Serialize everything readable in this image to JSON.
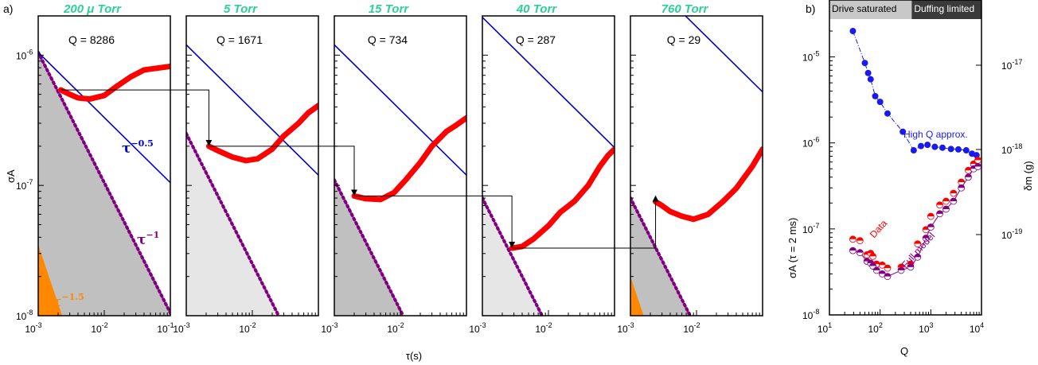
{
  "chart_data": [
    {
      "type": "line",
      "panel_label": "a)",
      "xlabel": "τ(s)",
      "ylabel": "σA",
      "xscale": "log",
      "yscale": "log",
      "xlim": [
        0.001,
        0.1
      ],
      "ylim": [
        1e-08,
        2e-06
      ],
      "x_tick_labels": [
        "10-3",
        "10-2",
        "10-1"
      ],
      "y_tick_labels": [
        "10-8",
        "10-7",
        "10-6"
      ],
      "slope_labels": [
        "τ−0.5",
        "τ−1",
        "τ−1.5"
      ],
      "colors": {
        "data": "#ff0000",
        "tau05": "#0000cc",
        "tau1": "#800080",
        "tau15": "#ff8800",
        "title": "#2ecf9a",
        "shade_dark": "#c0c0c0",
        "shade_light": "#e6e6e6"
      },
      "panels": [
        {
          "title": "200 μ Torr",
          "q_label": "Q = 8286",
          "data_points": [
            [
              0.0022,
              5.4e-07
            ],
            [
              0.003,
              5e-07
            ],
            [
              0.004,
              4.7e-07
            ],
            [
              0.006,
              4.6e-07
            ],
            [
              0.01,
              4.9e-07
            ],
            [
              0.015,
              5.7e-07
            ],
            [
              0.025,
              6.8e-07
            ],
            [
              0.04,
              7.7e-07
            ],
            [
              0.07,
              8e-07
            ],
            [
              0.1,
              8.2e-07
            ]
          ],
          "tau05_ref": [
            0.001,
            1.05e-06
          ],
          "tau1_ref": [
            0.001,
            1.05e-06
          ],
          "tau15_ref": [
            0.001,
            3.5e-08
          ],
          "shade": "dark",
          "marker": [
            0.0022,
            5.4e-07
          ]
        },
        {
          "title": "5 Torr",
          "q_label": "Q = 1671",
          "data_points": [
            [
              0.0022,
              2e-07
            ],
            [
              0.003,
              1.85e-07
            ],
            [
              0.005,
              1.65e-07
            ],
            [
              0.008,
              1.55e-07
            ],
            [
              0.012,
              1.6e-07
            ],
            [
              0.02,
              1.9e-07
            ],
            [
              0.03,
              2.4e-07
            ],
            [
              0.05,
              3e-07
            ],
            [
              0.07,
              3.6e-07
            ],
            [
              0.1,
              4.1e-07
            ]
          ],
          "tau05_ref": [
            0.001,
            1.2e-06
          ],
          "tau1_ref": [
            0.001,
            2.5e-07
          ],
          "tau15_ref": null,
          "shade": "light",
          "marker": [
            0.0022,
            2e-07
          ]
        },
        {
          "title": "15 Torr",
          "q_label": "Q = 734",
          "data_points": [
            [
              0.002,
              8.3e-08
            ],
            [
              0.003,
              7.9e-08
            ],
            [
              0.005,
              7.8e-08
            ],
            [
              0.008,
              8.8e-08
            ],
            [
              0.012,
              1.1e-07
            ],
            [
              0.02,
              1.5e-07
            ],
            [
              0.03,
              2e-07
            ],
            [
              0.05,
              2.6e-07
            ],
            [
              0.07,
              2.9e-07
            ],
            [
              0.1,
              3.3e-07
            ]
          ],
          "tau05_ref": [
            0.001,
            1.2e-06
          ],
          "tau1_ref": [
            0.001,
            1.1e-07
          ],
          "tau15_ref": null,
          "shade": "dark",
          "marker": [
            0.002,
            8.3e-08
          ]
        },
        {
          "title": "40 Torr",
          "q_label": "Q = 287",
          "data_points": [
            [
              0.0028,
              3.3e-08
            ],
            [
              0.004,
              3.4e-08
            ],
            [
              0.006,
              3.9e-08
            ],
            [
              0.01,
              4.9e-08
            ],
            [
              0.015,
              6.2e-08
            ],
            [
              0.025,
              7.6e-08
            ],
            [
              0.04,
              1e-07
            ],
            [
              0.06,
              1.4e-07
            ],
            [
              0.08,
              1.7e-07
            ],
            [
              0.1,
              1.9e-07
            ]
          ],
          "tau05_ref": [
            0.001,
            1.95e-06
          ],
          "tau1_ref": [
            0.001,
            8e-08
          ],
          "tau15_ref": null,
          "shade": "light",
          "marker": [
            0.0028,
            3.3e-08
          ]
        },
        {
          "title": "760 Torr",
          "q_label": "Q = 29",
          "data_points": [
            [
              0.0024,
              7.5e-08
            ],
            [
              0.003,
              7e-08
            ],
            [
              0.004,
              6.3e-08
            ],
            [
              0.006,
              5.8e-08
            ],
            [
              0.009,
              5.5e-08
            ],
            [
              0.015,
              6e-08
            ],
            [
              0.025,
              7.5e-08
            ],
            [
              0.04,
              9.5e-08
            ],
            [
              0.07,
              1.4e-07
            ],
            [
              0.1,
              1.9e-07
            ]
          ],
          "tau05_ref": [
            0.01,
            1.65e-06
          ],
          "tau1_ref": [
            0.001,
            8e-08
          ],
          "tau15_ref": [
            0.001,
            2e-08
          ],
          "shade": "dark",
          "marker": [
            0.0024,
            7.5e-08
          ]
        }
      ]
    },
    {
      "type": "scatter",
      "panel_label": "b)",
      "xlabel": "Q",
      "ylabel": "σA (τ = 2 ms)",
      "y2label": "δm (g)",
      "xscale": "log",
      "yscale": "log",
      "xlim": [
        10,
        10000
      ],
      "ylim": [
        1e-08,
        3e-05
      ],
      "x_tick_labels": [
        "101",
        "102",
        "103",
        "104"
      ],
      "y_tick_labels": [
        "10-8",
        "10-7",
        "10-6",
        "10-5"
      ],
      "y2_tick_labels": [
        "10-19",
        "10-18",
        "10-17"
      ],
      "regions": [
        {
          "label": "Drive saturated",
          "x_range": [
            10,
            420
          ],
          "color": "#c8c8c8"
        },
        {
          "label": "Duffing limited",
          "x_range": [
            420,
            10000
          ],
          "color": "#3a3a3a"
        }
      ],
      "series": [
        {
          "name": "High Q approx.",
          "color": "#1a1aee",
          "points": [
            [
              29,
              2e-05
            ],
            [
              50,
              8.5e-06
            ],
            [
              58,
              6.5e-06
            ],
            [
              65,
              5.5e-06
            ],
            [
              80,
              3.5e-06
            ],
            [
              100,
              3e-06
            ],
            [
              140,
              2.2e-06
            ],
            [
              280,
              1.35e-06
            ],
            [
              460,
              8.2e-07
            ],
            [
              640,
              9.2e-07
            ],
            [
              860,
              9.5e-07
            ],
            [
              1200,
              9e-07
            ],
            [
              1700,
              8.8e-07
            ],
            [
              2500,
              8.5e-07
            ],
            [
              3500,
              8.4e-07
            ],
            [
              5000,
              8.2e-07
            ],
            [
              6500,
              7.5e-07
            ],
            [
              8000,
              7.2e-07
            ]
          ]
        },
        {
          "name": "Data",
          "color": "#ff0000",
          "points": [
            [
              29,
              7.6e-08
            ],
            [
              40,
              7.3e-08
            ],
            [
              55,
              5e-08
            ],
            [
              65,
              5.2e-08
            ],
            [
              72,
              4.8e-08
            ],
            [
              85,
              3.9e-08
            ],
            [
              110,
              3.8e-08
            ],
            [
              140,
              3.5e-08
            ],
            [
              260,
              3.6e-08
            ],
            [
              400,
              3.9e-08
            ],
            [
              550,
              6.7e-08
            ],
            [
              800,
              9.8e-08
            ],
            [
              1000,
              1.4e-07
            ],
            [
              1500,
              1.9e-07
            ],
            [
              2000,
              2.1e-07
            ],
            [
              2800,
              2.6e-07
            ],
            [
              4000,
              3.5e-07
            ],
            [
              5500,
              4.8e-07
            ],
            [
              7000,
              5.7e-07
            ],
            [
              8500,
              6.3e-07
            ]
          ]
        },
        {
          "name": "Full model",
          "color": "#800080",
          "points": [
            [
              29,
              5.6e-08
            ],
            [
              40,
              5.3e-08
            ],
            [
              55,
              4.2e-08
            ],
            [
              65,
              4e-08
            ],
            [
              72,
              3.7e-08
            ],
            [
              85,
              3.3e-08
            ],
            [
              110,
              3e-08
            ],
            [
              140,
              2.8e-08
            ],
            [
              260,
              3.3e-08
            ],
            [
              400,
              3.6e-08
            ],
            [
              550,
              4.7e-08
            ],
            [
              800,
              7.8e-08
            ],
            [
              1000,
              1.05e-07
            ],
            [
              1500,
              1.5e-07
            ],
            [
              2000,
              1.7e-07
            ],
            [
              2800,
              2.1e-07
            ],
            [
              4000,
              3e-07
            ],
            [
              5500,
              4e-07
            ],
            [
              7000,
              5e-07
            ],
            [
              8500,
              5.3e-07
            ]
          ]
        }
      ]
    }
  ]
}
